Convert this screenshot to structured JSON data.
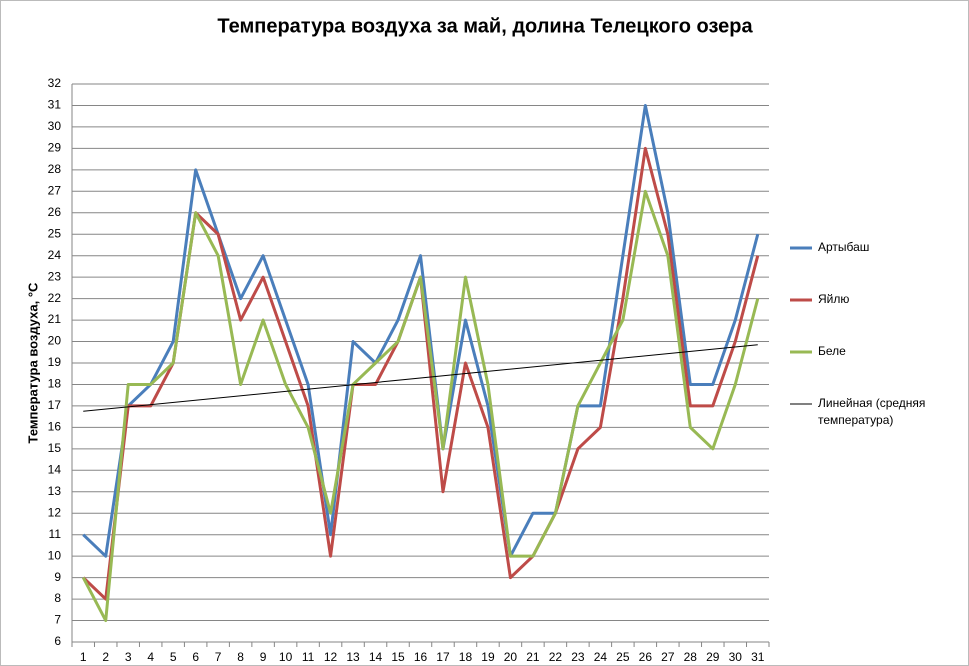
{
  "chart_data": {
    "type": "line",
    "title": "Температура воздуха за май, долина Телецкого озера",
    "y_label": "Температура воздуха, °С",
    "categories": [
      1,
      2,
      3,
      4,
      5,
      6,
      7,
      8,
      9,
      10,
      11,
      12,
      13,
      14,
      15,
      16,
      17,
      18,
      19,
      20,
      21,
      22,
      23,
      24,
      25,
      26,
      27,
      28,
      29,
      30,
      31
    ],
    "series": [
      {
        "name": "Артыбаш",
        "color": "#4a7ebb",
        "values": [
          11,
          10,
          17,
          18,
          20,
          28,
          25,
          22,
          24,
          21,
          18,
          11,
          20,
          19,
          21,
          24,
          15,
          21,
          17,
          10,
          12,
          12,
          17,
          17,
          24,
          31,
          26,
          18,
          18,
          21,
          25
        ]
      },
      {
        "name": "Яйлю",
        "color": "#be4b48",
        "values": [
          9,
          8,
          17,
          17,
          19,
          26,
          25,
          21,
          23,
          20,
          17,
          10,
          18,
          18,
          20,
          23,
          13,
          19,
          16,
          9,
          10,
          12,
          15,
          16,
          22,
          29,
          25,
          17,
          17,
          20,
          24
        ]
      },
      {
        "name": "Беле",
        "color": "#98b954",
        "values": [
          9,
          7,
          18,
          18,
          19,
          26,
          24,
          18,
          21,
          18,
          16,
          12,
          18,
          19,
          20,
          23,
          15,
          23,
          18,
          10,
          10,
          12,
          17,
          19,
          21,
          27,
          24,
          16,
          15,
          18,
          22
        ]
      }
    ],
    "trendline": {
      "name": "Линейная (средняя температура)",
      "color": "#000000",
      "x": [
        1,
        31
      ],
      "values": [
        16.75,
        19.85
      ]
    },
    "ylim": [
      6,
      32
    ],
    "yticks": [
      6,
      7,
      8,
      9,
      10,
      11,
      12,
      13,
      14,
      15,
      16,
      17,
      18,
      19,
      20,
      21,
      22,
      23,
      24,
      25,
      26,
      27,
      28,
      29,
      30,
      31,
      32
    ],
    "grid": true
  }
}
